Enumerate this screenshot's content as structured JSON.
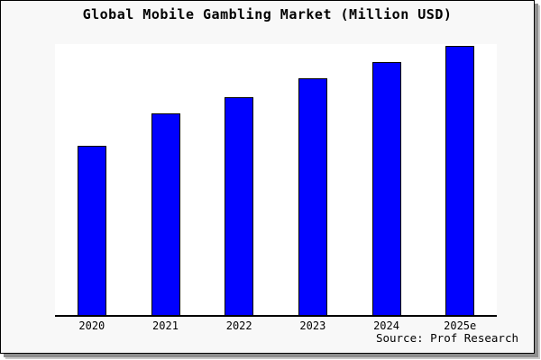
{
  "frame": {
    "background": "#f8f8f8",
    "border_color": "#000000",
    "shadow_color": "#8e8e8e"
  },
  "chart_data": {
    "type": "bar",
    "title": "Global Mobile Gambling Market (Million USD)",
    "categories": [
      "2020",
      "2021",
      "2022",
      "2023",
      "2024",
      "2025e"
    ],
    "values": [
      63,
      75,
      81,
      88,
      94,
      100
    ],
    "value_scale_note": "y-axis has no tick labels; values are a relative index estimated from bar heights with 2025e = 100",
    "xlabel": "",
    "ylabel": "",
    "ylim": [
      0,
      100.7
    ],
    "grid": false,
    "legend": null,
    "bar_color": "#0000fe",
    "bar_edge_color": "#000000",
    "plot_background": "#ffffff",
    "axis_color": "#000000"
  },
  "footer": {
    "source_label": "Source: Prof Research"
  }
}
